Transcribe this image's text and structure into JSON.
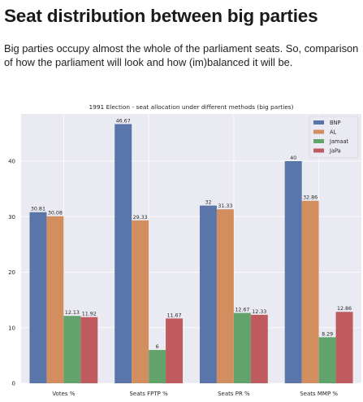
{
  "article": {
    "heading": "Seat distribution between big parties",
    "intro": "Big parties occupy almost the whole of the parliament seats. So, comparison of how the parliament will look and how (im)balanced it will be."
  },
  "chart_data": {
    "type": "bar",
    "title": "1991 Election - seat allocation under different methods (big parties)",
    "xlabel": "",
    "ylabel": "",
    "categories": [
      "Votes %",
      "Seats FPTP %",
      "Seats PR %",
      "Seats MMP %"
    ],
    "ylim": [
      0,
      48.5
    ],
    "yticks": [
      0,
      10,
      20,
      30,
      40
    ],
    "grid": true,
    "legend_position": "top-right",
    "series": [
      {
        "name": "BNP",
        "color": "#5975a9",
        "values": [
          30.81,
          46.67,
          32,
          40
        ],
        "labels": [
          "30.81",
          "46.67",
          "32",
          "40"
        ]
      },
      {
        "name": "AL",
        "color": "#d38e5f",
        "values": [
          30.08,
          29.33,
          31.33,
          32.86
        ],
        "labels": [
          "30.08",
          "29.33",
          "31.33",
          "32.86"
        ]
      },
      {
        "name": "Jamaat",
        "color": "#62a36c",
        "values": [
          12.13,
          6,
          12.67,
          8.29
        ],
        "labels": [
          "12.13",
          "6",
          "12.67",
          "8.29"
        ]
      },
      {
        "name": "JaPa",
        "color": "#bf5a5e",
        "values": [
          11.92,
          11.67,
          12.33,
          12.86
        ],
        "labels": [
          "11.92",
          "11.67",
          "12.33",
          "12.86"
        ]
      }
    ]
  }
}
